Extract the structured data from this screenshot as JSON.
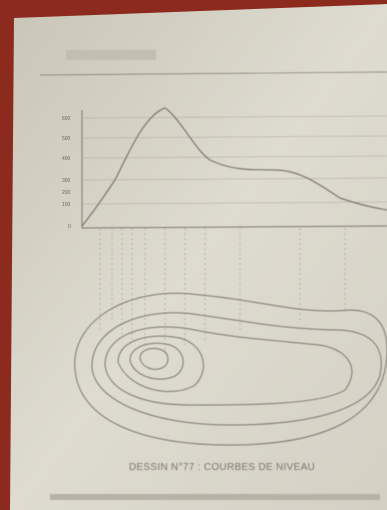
{
  "profile": {
    "y_labels": [
      "600",
      "500",
      "400",
      "300",
      "200",
      "100",
      "0"
    ]
  },
  "caption": "DESSIN N°77 : COURBES DE NIVEAU"
}
